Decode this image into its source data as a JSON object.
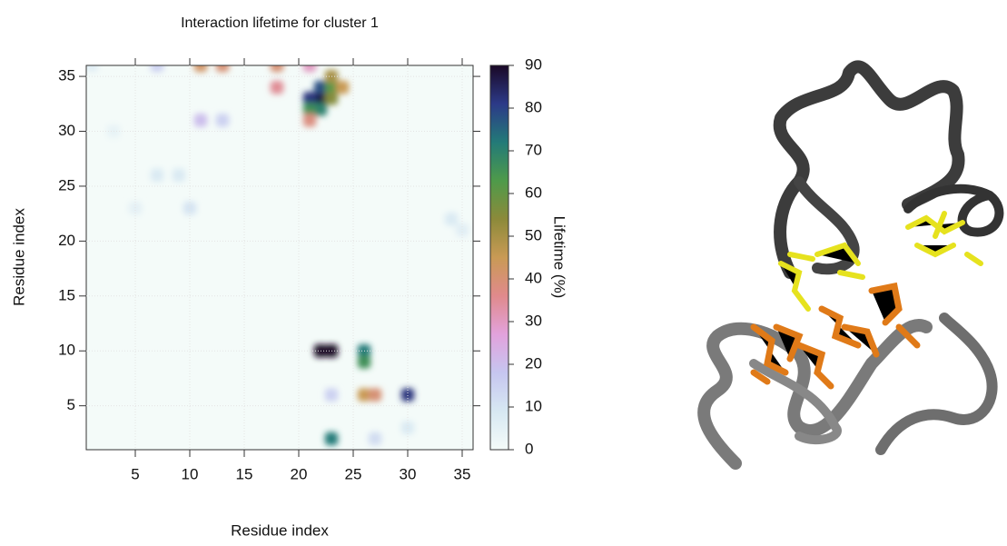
{
  "chart_data": {
    "type": "heatmap",
    "title": "Interaction lifetime for cluster 1",
    "x_label": "Residue index",
    "y_label": "Residue index",
    "colorbar_label": "Lifetime (%)",
    "xlim": [
      0.5,
      36
    ],
    "ylim": [
      1,
      36
    ],
    "xticks": [
      5,
      10,
      15,
      20,
      25,
      30,
      35
    ],
    "yticks": [
      5,
      10,
      15,
      20,
      25,
      30,
      35
    ],
    "clim": [
      0,
      90
    ],
    "cticks": [
      0,
      10,
      20,
      30,
      40,
      50,
      60,
      70,
      80,
      90
    ],
    "colormap": [
      "#f4fbf9",
      "#d7e8f2",
      "#c6c6f0",
      "#e2a2dc",
      "#e08a8c",
      "#c99a55",
      "#8c8a3a",
      "#4e9a4a",
      "#237a78",
      "#2c3a88",
      "#1a0826"
    ],
    "cells": [
      {
        "x": 22,
        "y": 33,
        "value": 88
      },
      {
        "x": 21,
        "y": 33,
        "value": 82
      },
      {
        "x": 22,
        "y": 34,
        "value": 78
      },
      {
        "x": 23,
        "y": 34,
        "value": 62
      },
      {
        "x": 22,
        "y": 32,
        "value": 70
      },
      {
        "x": 21,
        "y": 32,
        "value": 66
      },
      {
        "x": 23,
        "y": 35,
        "value": 50
      },
      {
        "x": 24,
        "y": 34,
        "value": 45
      },
      {
        "x": 21,
        "y": 31,
        "value": 38
      },
      {
        "x": 23,
        "y": 33,
        "value": 55
      },
      {
        "x": 22,
        "y": 10,
        "value": 90
      },
      {
        "x": 23,
        "y": 10,
        "value": 90
      },
      {
        "x": 26,
        "y": 10,
        "value": 72
      },
      {
        "x": 26,
        "y": 9,
        "value": 66
      },
      {
        "x": 26,
        "y": 6,
        "value": 45
      },
      {
        "x": 27,
        "y": 6,
        "value": 40
      },
      {
        "x": 30,
        "y": 6,
        "value": 82
      },
      {
        "x": 23,
        "y": 2,
        "value": 72
      },
      {
        "x": 11,
        "y": 36,
        "value": 42
      },
      {
        "x": 13,
        "y": 36,
        "value": 40
      },
      {
        "x": 18,
        "y": 36,
        "value": 40
      },
      {
        "x": 18,
        "y": 34,
        "value": 35
      },
      {
        "x": 21,
        "y": 36,
        "value": 30
      },
      {
        "x": 7,
        "y": 36,
        "value": 15
      },
      {
        "x": 11,
        "y": 31,
        "value": 20
      },
      {
        "x": 13,
        "y": 31,
        "value": 15
      },
      {
        "x": 23,
        "y": 6,
        "value": 15
      },
      {
        "x": 27,
        "y": 2,
        "value": 12
      },
      {
        "x": 30,
        "y": 3,
        "value": 8
      },
      {
        "x": 10,
        "y": 23,
        "value": 10
      },
      {
        "x": 7,
        "y": 26,
        "value": 8
      },
      {
        "x": 9,
        "y": 26,
        "value": 8
      },
      {
        "x": 34,
        "y": 22,
        "value": 8
      },
      {
        "x": 35,
        "y": 21,
        "value": 6
      },
      {
        "x": 5,
        "y": 23,
        "value": 5
      },
      {
        "x": 3,
        "y": 30,
        "value": 4
      },
      {
        "x": 1,
        "y": 36,
        "value": 6
      }
    ]
  }
}
